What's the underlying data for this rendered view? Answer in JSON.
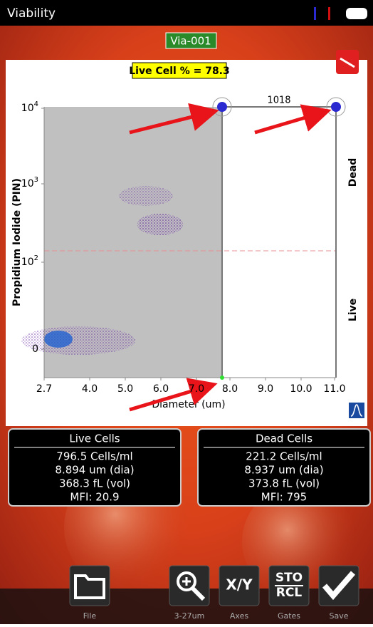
{
  "status_bar": {
    "title": "Viability"
  },
  "sample_id": "Via-001",
  "live_cell_percent": "Live Cell % = 78.3",
  "plot": {
    "gate_count": "1018",
    "y_axis_label": "Propidium Iodide (PIN)",
    "x_axis_label": "Diameter (um)",
    "x_ticks": [
      "2.7",
      "4.0",
      "5.0",
      "6.0",
      "7.0",
      "8.0",
      "9.0",
      "10.0",
      "11.0"
    ],
    "y_ticks": [
      {
        "base": "10",
        "exp": "4"
      },
      {
        "base": "10",
        "exp": "3"
      },
      {
        "base": "10",
        "exp": "2"
      },
      {
        "base": "0"
      }
    ],
    "region_labels": [
      "Dead",
      "Live"
    ]
  },
  "panels": [
    {
      "title": "Live Cells",
      "lines": [
        "796.5 Cells/ml",
        "8.894 um (dia)",
        "368.3 fL (vol)",
        "MFI:  20.9"
      ]
    },
    {
      "title": "Dead Cells",
      "lines": [
        "221.2 Cells/ml",
        "8.937 um (dia)",
        "373.8 fL (vol)",
        "MFI:    795"
      ]
    }
  ],
  "toolbar": [
    {
      "label": "File"
    },
    {
      "label": "3-27um"
    },
    {
      "icon_text": "X/Y",
      "label": "Axes"
    },
    {
      "icon_text": [
        "STO",
        "RCL"
      ],
      "label": "Gates"
    },
    {
      "label": "Save"
    }
  ]
}
